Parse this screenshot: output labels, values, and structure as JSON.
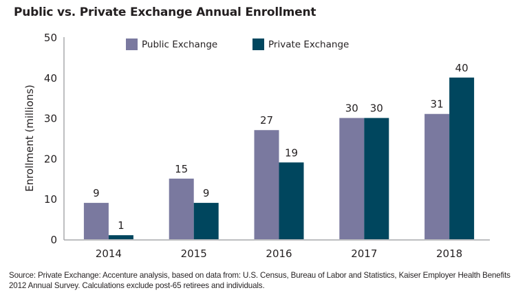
{
  "chart_data": {
    "type": "bar",
    "title": "Public vs. Private Exchange Annual Enrollment",
    "xlabel": "",
    "ylabel": "Enrollment (millions)",
    "categories": [
      "2014",
      "2015",
      "2016",
      "2017",
      "2018"
    ],
    "series": [
      {
        "name": "Public Exchange",
        "color": "#7a799f",
        "values": [
          9,
          15,
          27,
          30,
          31
        ]
      },
      {
        "name": "Private Exchange",
        "color": "#00465e",
        "values": [
          1,
          9,
          19,
          30,
          40
        ]
      }
    ],
    "ylim": [
      0,
      50
    ],
    "yticks": [
      "0",
      "10",
      "20",
      "30",
      "40",
      "50"
    ],
    "grid": false,
    "legend": "top-center",
    "data_labels": true
  },
  "source_note": "Source: Private Exchange: Accenture analysis, based on data from: U.S. Census, Bureau of Labor and Statistics, Kaiser Employer Health Benefits 2012 Annual Survey. Calculations exclude post-65 retirees and individuals.",
  "colors": {
    "axis": "#a7a9ac",
    "text": "#231f20"
  }
}
